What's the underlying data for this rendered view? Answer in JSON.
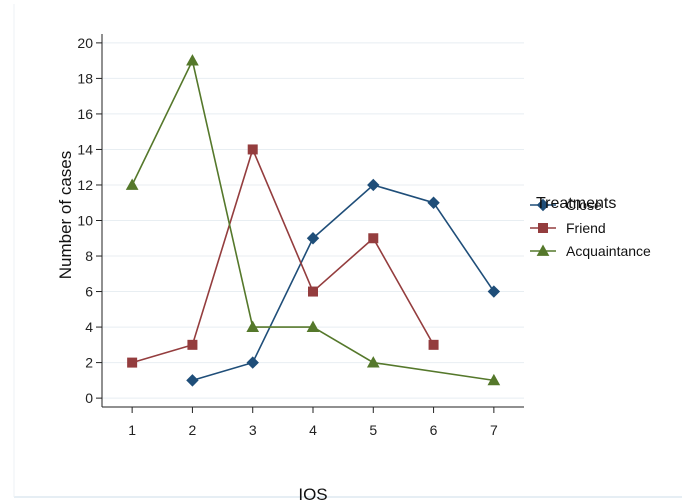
{
  "chart_data": {
    "type": "line",
    "title": "",
    "xlabel": "IOS",
    "ylabel": "Number of cases",
    "x": [
      1,
      2,
      3,
      4,
      5,
      6,
      7
    ],
    "xlim": [
      0.5,
      7.5
    ],
    "ylim": [
      -0.5,
      20.5
    ],
    "xticks": [
      1,
      2,
      3,
      4,
      5,
      6,
      7
    ],
    "yticks": [
      0,
      2,
      4,
      6,
      8,
      10,
      12,
      14,
      16,
      18,
      20
    ],
    "grid": "horizontal",
    "legend": {
      "title": "Treatments",
      "placement": "right",
      "entries": [
        "Close",
        "Friend",
        "Acquaintance"
      ]
    },
    "series": [
      {
        "name": "Close",
        "color": "#1f4e79",
        "marker": "diamond",
        "values": [
          null,
          1,
          2,
          9,
          12,
          11,
          6
        ]
      },
      {
        "name": "Friend",
        "color": "#943d3e",
        "marker": "square",
        "values": [
          2,
          3,
          14,
          6,
          9,
          3,
          null
        ]
      },
      {
        "name": "Acquaintance",
        "color": "#55782b",
        "marker": "triangle",
        "values": [
          12,
          19,
          4,
          4,
          2,
          null,
          1
        ]
      }
    ]
  }
}
